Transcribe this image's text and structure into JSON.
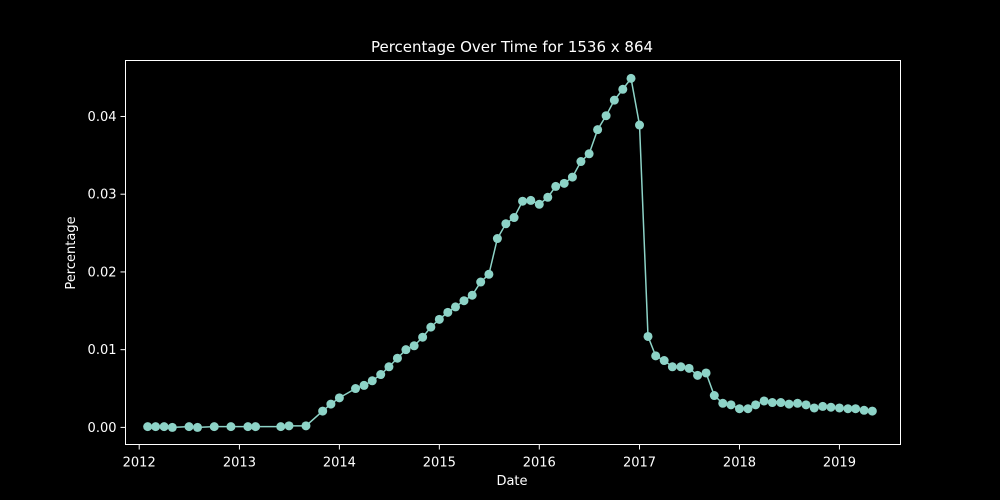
{
  "chart_data": {
    "type": "line",
    "title": "Percentage Over Time for 1536 x 864",
    "xlabel": "Date",
    "ylabel": "Percentage",
    "x_ticks": [
      "2012",
      "2013",
      "2014",
      "2015",
      "2016",
      "2017",
      "2018",
      "2019"
    ],
    "y_ticks": [
      "0.00",
      "0.01",
      "0.02",
      "0.03",
      "0.04"
    ],
    "ylim": [
      -0.0022,
      0.0472
    ],
    "xlim": [
      "2011-11-12",
      "2019-08-12"
    ],
    "grid": false,
    "legend": "none",
    "colors": {
      "background": "#000000",
      "axes": "#ffffff",
      "series": "#8dd3c7"
    },
    "series": [
      {
        "x": [
          "2012-02-01",
          "2012-03-01",
          "2012-04-01",
          "2012-05-01",
          "2012-07-01",
          "2012-08-01",
          "2012-10-01",
          "2012-12-01",
          "2013-02-01",
          "2013-03-01",
          "2013-06-01",
          "2013-07-01",
          "2013-09-01",
          "2013-11-01",
          "2013-12-01",
          "2014-01-01",
          "2014-03-01",
          "2014-04-01",
          "2014-05-01",
          "2014-06-01",
          "2014-07-01",
          "2014-08-01",
          "2014-09-01",
          "2014-10-01",
          "2014-11-01",
          "2014-12-01",
          "2015-01-01",
          "2015-02-01",
          "2015-03-01",
          "2015-04-01",
          "2015-05-01",
          "2015-06-01",
          "2015-07-01",
          "2015-08-01",
          "2015-09-01",
          "2015-10-01",
          "2015-11-01",
          "2015-12-01",
          "2016-01-01",
          "2016-02-01",
          "2016-03-01",
          "2016-04-01",
          "2016-05-01",
          "2016-06-01",
          "2016-07-01",
          "2016-08-01",
          "2016-09-01",
          "2016-10-01",
          "2016-11-01",
          "2016-12-01",
          "2017-01-01",
          "2017-02-01",
          "2017-03-01",
          "2017-04-01",
          "2017-05-01",
          "2017-06-01",
          "2017-07-01",
          "2017-08-01",
          "2017-09-01",
          "2017-10-01",
          "2017-11-01",
          "2017-12-01",
          "2018-01-01",
          "2018-02-01",
          "2018-03-01",
          "2018-04-01",
          "2018-05-01",
          "2018-06-01",
          "2018-07-01",
          "2018-08-01",
          "2018-09-01",
          "2018-10-01",
          "2018-11-01",
          "2018-12-01",
          "2019-01-01",
          "2019-02-01",
          "2019-03-01",
          "2019-04-01",
          "2019-05-01"
        ],
        "y": [
          0.0001,
          0.0001,
          0.0001,
          0.0,
          0.0001,
          0.0,
          0.0001,
          0.0001,
          0.0001,
          0.0001,
          0.0001,
          0.0002,
          0.0002,
          0.0021,
          0.003,
          0.0038,
          0.005,
          0.0054,
          0.006,
          0.0068,
          0.0078,
          0.0089,
          0.01,
          0.0105,
          0.0116,
          0.0129,
          0.0139,
          0.0148,
          0.0155,
          0.0163,
          0.017,
          0.0187,
          0.0197,
          0.0243,
          0.0262,
          0.027,
          0.0291,
          0.0292,
          0.0287,
          0.0296,
          0.031,
          0.0314,
          0.0322,
          0.0342,
          0.0352,
          0.0383,
          0.0401,
          0.0421,
          0.0435,
          0.0449,
          0.0389,
          0.0117,
          0.0092,
          0.0086,
          0.0078,
          0.0078,
          0.0076,
          0.0067,
          0.007,
          0.0041,
          0.0031,
          0.0029,
          0.0024,
          0.0024,
          0.0029,
          0.0034,
          0.0032,
          0.0032,
          0.003,
          0.0031,
          0.0029,
          0.0025,
          0.0027,
          0.0026,
          0.0025,
          0.0024,
          0.0024,
          0.0022,
          0.0021
        ]
      }
    ]
  }
}
